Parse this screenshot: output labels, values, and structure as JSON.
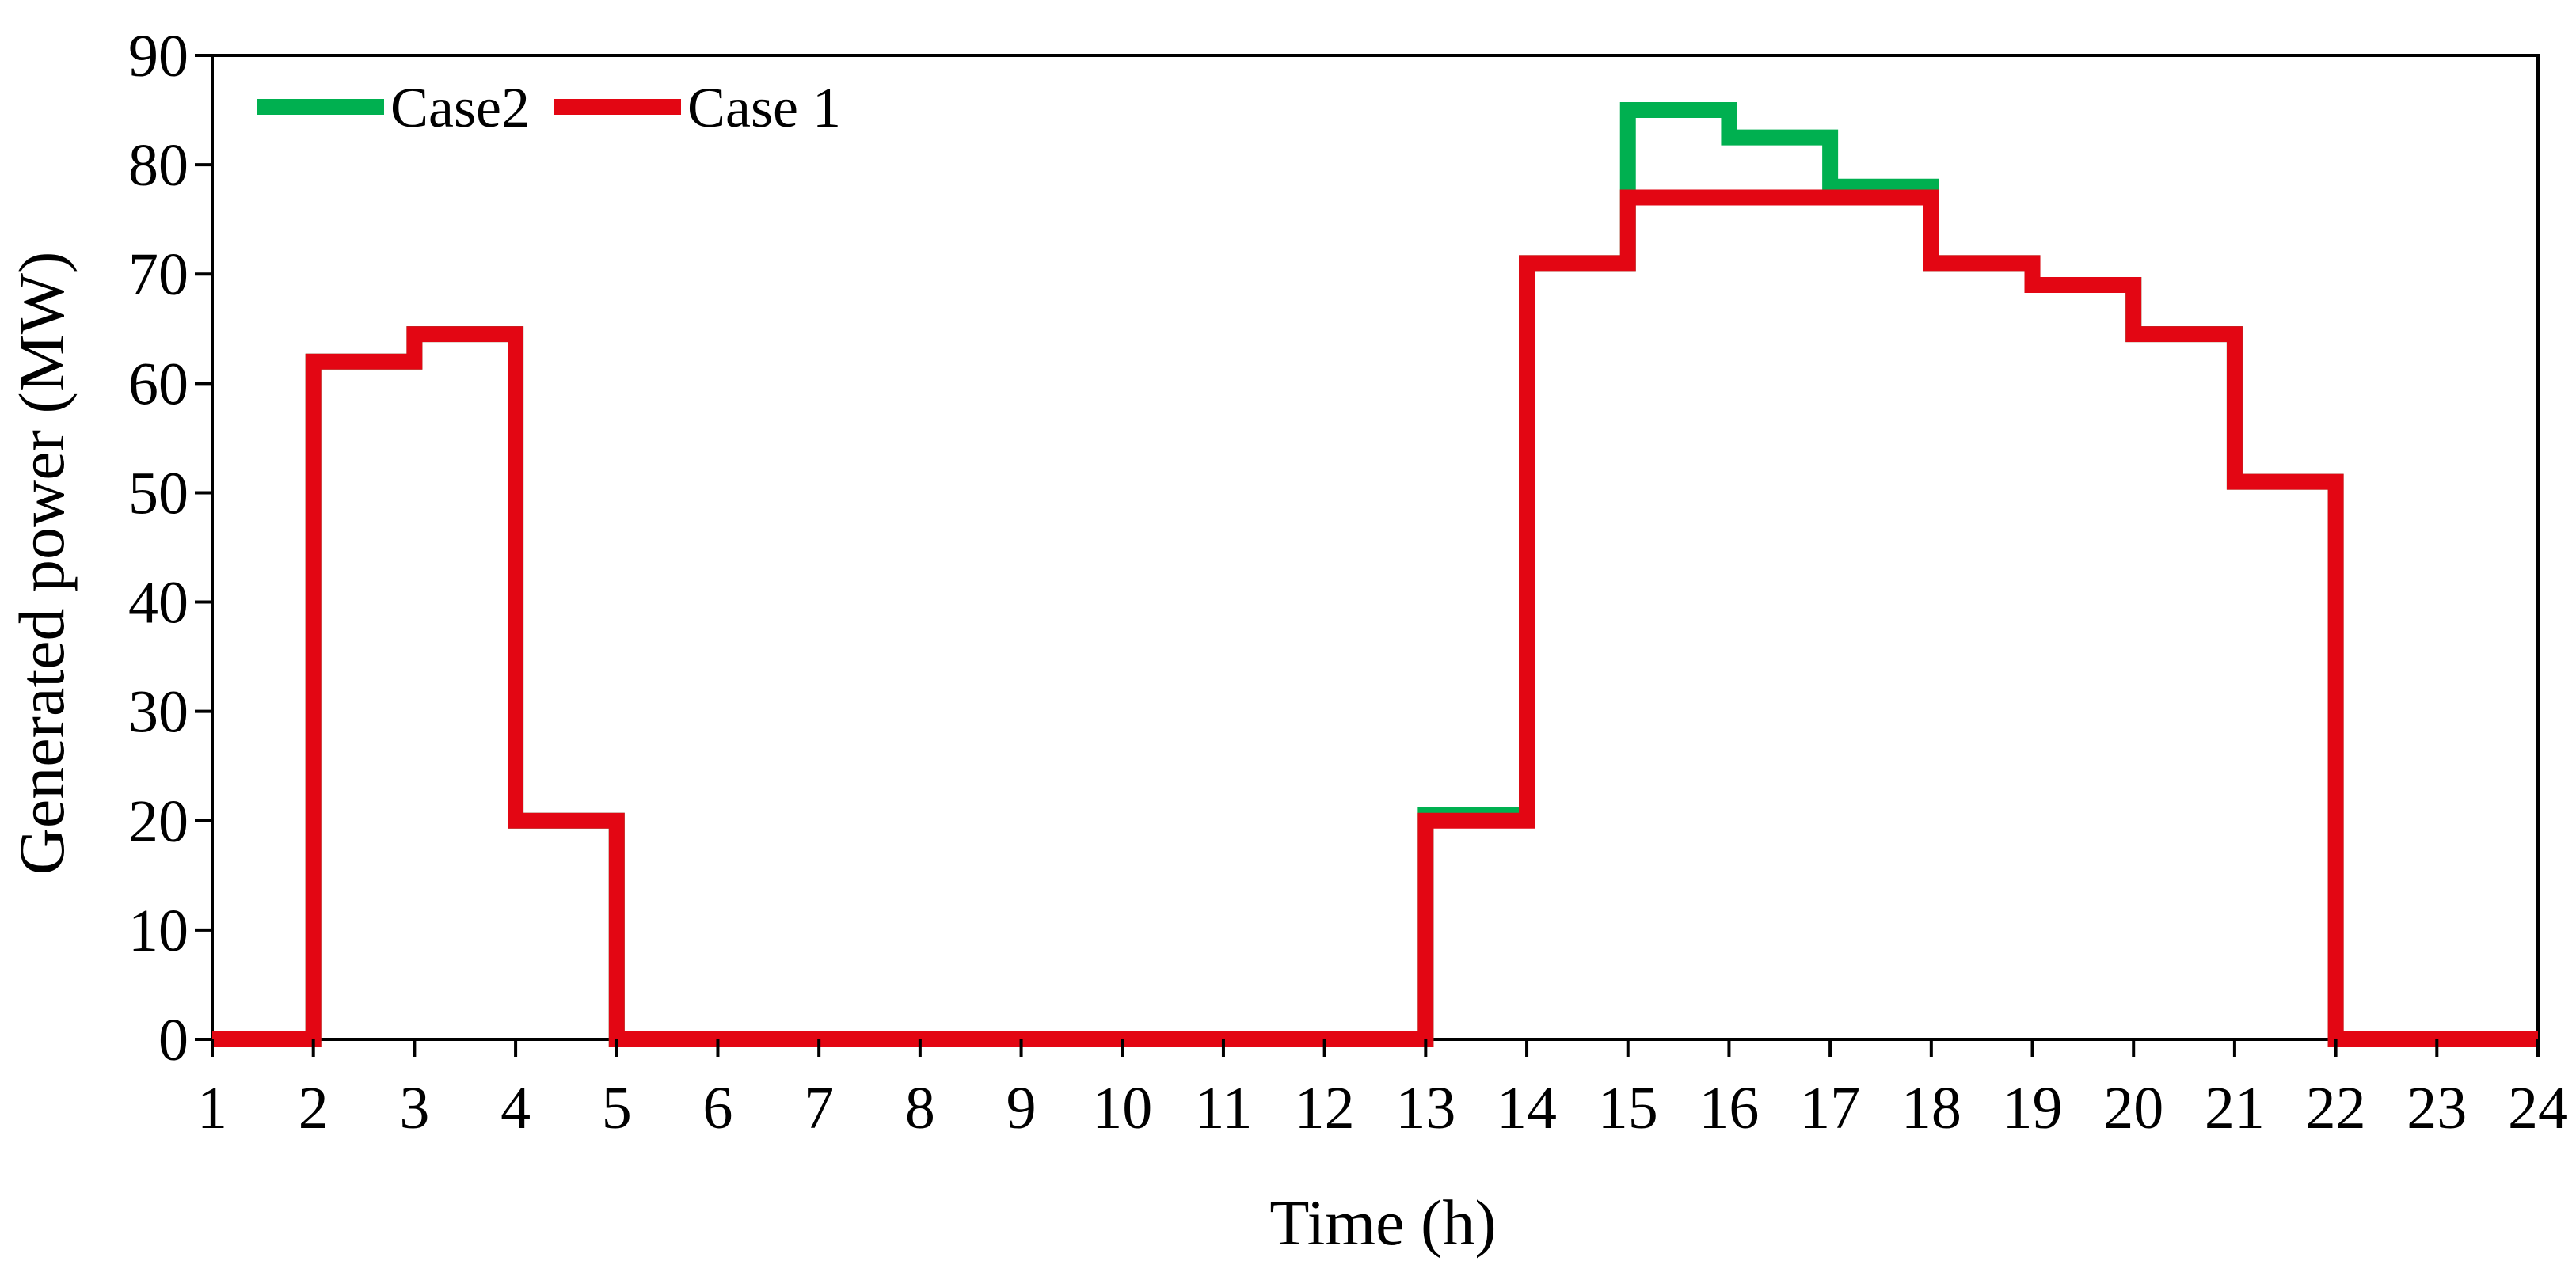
{
  "chart_data": {
    "type": "line",
    "step": true,
    "title": "",
    "xlabel": "Time (h)",
    "ylabel": "Generated power (MW)",
    "xlim": [
      1,
      24
    ],
    "ylim": [
      0,
      90
    ],
    "x_ticks": [
      "1",
      "2",
      "3",
      "4",
      "5",
      "6",
      "7",
      "8",
      "9",
      "10",
      "11",
      "12",
      "13",
      "14",
      "15",
      "16",
      "17",
      "18",
      "19",
      "20",
      "21",
      "22",
      "23",
      "24"
    ],
    "y_ticks": [
      "0",
      "10",
      "20",
      "30",
      "40",
      "50",
      "60",
      "70",
      "80",
      "90"
    ],
    "grid": false,
    "legend": {
      "position": "top-left"
    },
    "x": [
      1,
      2,
      3,
      4,
      5,
      6,
      7,
      8,
      9,
      10,
      11,
      12,
      13,
      14,
      15,
      16,
      17,
      18,
      19,
      20,
      21,
      22,
      23
    ],
    "series": [
      {
        "name": "Case2",
        "color": "#00b050",
        "values": [
          0,
          62,
          64.5,
          20,
          0,
          0,
          0,
          0,
          0,
          0,
          0,
          0,
          20.5,
          71,
          85,
          82.5,
          78,
          71,
          69,
          64.5,
          51,
          0,
          0
        ]
      },
      {
        "name": "Case 1",
        "color": "#e30613",
        "values": [
          0,
          62,
          64.5,
          20,
          0,
          0,
          0,
          0,
          0,
          0,
          0,
          0,
          20,
          71,
          77,
          77,
          77,
          71,
          69,
          64.5,
          51,
          0,
          0
        ]
      }
    ]
  }
}
